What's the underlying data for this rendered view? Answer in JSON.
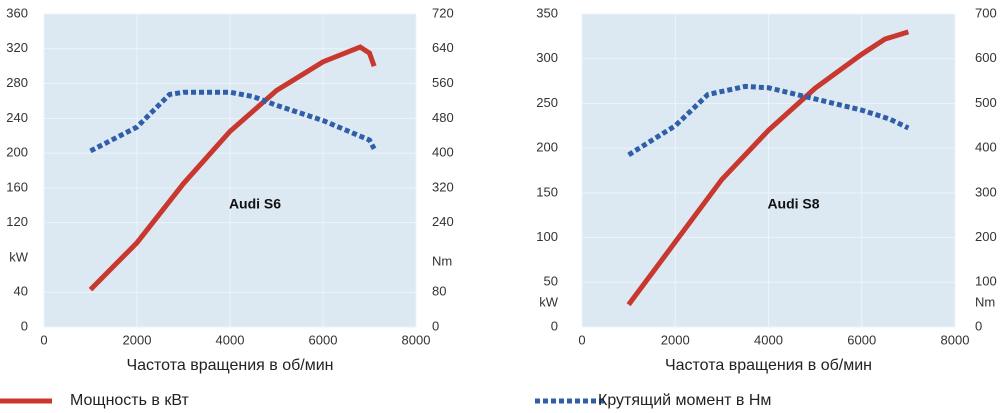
{
  "chart_data": [
    {
      "type": "line",
      "annotation": "Audi S6",
      "xlabel": "Частота вращения в об/мин",
      "ylabel": "kW",
      "y2label": "Nm",
      "xlim": [
        0,
        8000
      ],
      "xticks": [
        0,
        2000,
        4000,
        6000,
        8000
      ],
      "ylim": [
        0,
        360
      ],
      "yticks": [
        0,
        40,
        120,
        160,
        200,
        240,
        280,
        320,
        360
      ],
      "y2lim": [
        0,
        720
      ],
      "y2ticks": [
        0,
        80,
        240,
        320,
        400,
        480,
        560,
        640,
        720
      ],
      "grid": true,
      "series": [
        {
          "name": "Мощность в кВт",
          "color": "#c8382e",
          "style": "solid",
          "x": [
            1000,
            2000,
            3000,
            4000,
            5000,
            6000,
            6800,
            7000,
            7100
          ],
          "values": [
            43,
            97,
            165,
            225,
            272,
            305,
            322,
            315,
            300
          ]
        },
        {
          "name": "Крутящий момент в Нм",
          "color": "#2f5eaa",
          "style": "dotted",
          "axis": "y2",
          "x": [
            1000,
            2000,
            2700,
            3000,
            4000,
            4500,
            5000,
            6000,
            7000,
            7100
          ],
          "values": [
            405,
            460,
            535,
            540,
            540,
            530,
            510,
            475,
            430,
            410
          ]
        }
      ]
    },
    {
      "type": "line",
      "annotation": "Audi S8",
      "xlabel": "Частота вращения в об/мин",
      "ylabel": "kW",
      "y2label": "Nm",
      "xlim": [
        0,
        8000
      ],
      "xticks": [
        0,
        2000,
        4000,
        6000,
        8000
      ],
      "ylim": [
        0,
        350
      ],
      "yticks": [
        0,
        50,
        100,
        150,
        200,
        250,
        300,
        350
      ],
      "y2lim": [
        0,
        700
      ],
      "y2ticks": [
        0,
        100,
        200,
        300,
        400,
        500,
        600,
        700
      ],
      "grid": true,
      "series": [
        {
          "color": "#c8382e",
          "style": "solid",
          "x": [
            1000,
            2000,
            3000,
            4000,
            5000,
            6000,
            6500,
            7000
          ],
          "values": [
            25,
            95,
            165,
            220,
            267,
            305,
            322,
            330
          ]
        },
        {
          "color": "#2f5eaa",
          "style": "dotted",
          "axis": "y2",
          "x": [
            1000,
            2000,
            2700,
            3500,
            4000,
            5000,
            6000,
            6600,
            7000
          ],
          "values": [
            385,
            450,
            520,
            538,
            535,
            510,
            485,
            465,
            445
          ]
        }
      ]
    }
  ]
}
